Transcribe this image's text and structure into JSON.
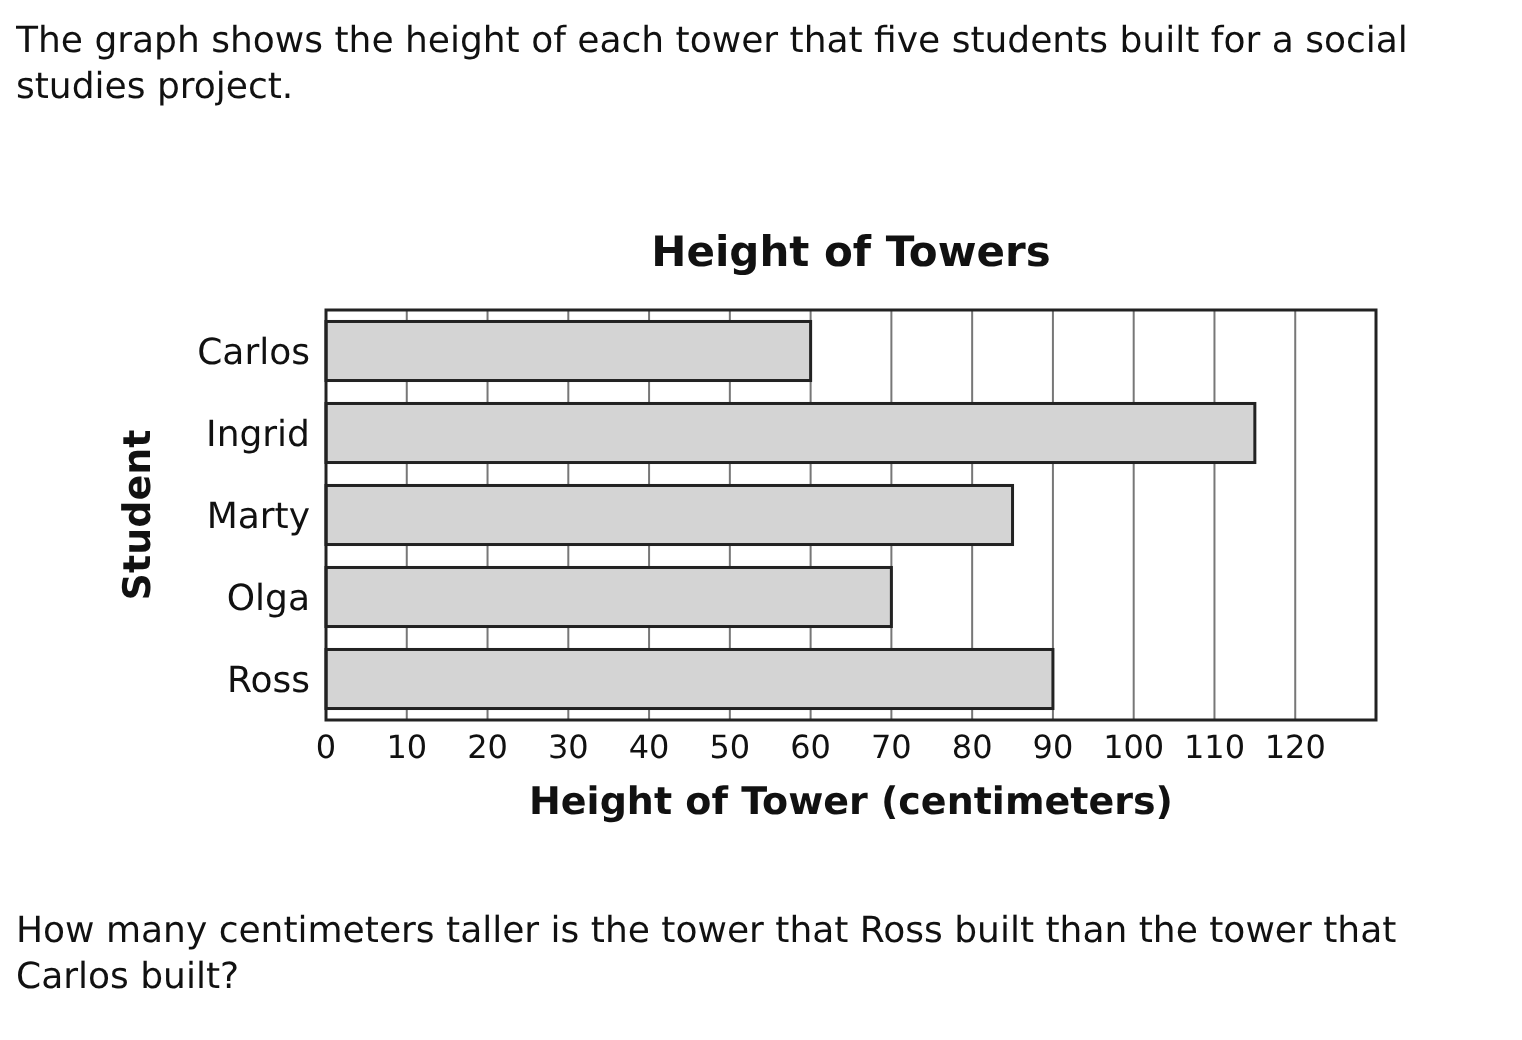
{
  "chart_data": {
    "type": "bar",
    "orientation": "horizontal",
    "title": "Height of Towers",
    "xlabel": "Height of Tower (centimeters)",
    "ylabel": "Student",
    "categories": [
      "Carlos",
      "Ingrid",
      "Marty",
      "Olga",
      "Ross"
    ],
    "values": [
      60,
      115,
      85,
      70,
      90
    ],
    "color": "#d4d4d4",
    "xlim": [
      0,
      130
    ],
    "xticks": [
      0,
      10,
      20,
      30,
      40,
      50,
      60,
      70,
      80,
      90,
      100,
      110,
      120
    ],
    "grid": "x",
    "annotations": [
      "The graph shows the height of each tower that five students built for a social studies project.",
      "How many centimeters taller is the tower that Ross built than the tower that Carlos built?"
    ]
  }
}
